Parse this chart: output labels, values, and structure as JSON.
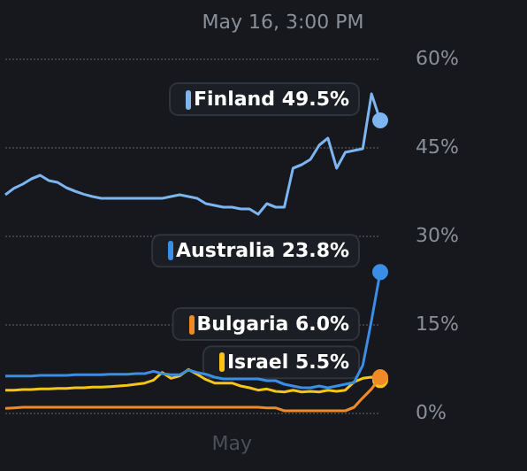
{
  "chart_data": {
    "type": "line",
    "title": "May 16, 3:00 PM",
    "categories": [
      null,
      null,
      null,
      null,
      null,
      null,
      null,
      null,
      null,
      null,
      null,
      null,
      null,
      null,
      null,
      null,
      null,
      null,
      null,
      null,
      null,
      null,
      null,
      null,
      null,
      null,
      "May",
      null,
      null,
      null,
      null,
      null,
      null,
      null,
      null,
      null,
      null,
      null,
      null,
      null,
      null,
      null,
      null,
      null
    ],
    "series": [
      {
        "name": "Finland",
        "color": "#7cb5f0",
        "values": [
          36.9,
          38,
          38.7,
          39.6,
          40.2,
          39.3,
          39,
          38.1,
          37.5,
          37,
          36.6,
          36.3,
          36.3,
          36.3,
          36.3,
          36.3,
          36.3,
          36.3,
          36.3,
          36.6,
          36.9,
          36.6,
          36.3,
          35.4,
          35.1,
          34.8,
          34.8,
          34.5,
          34.5,
          33.6,
          35.4,
          34.8,
          34.8,
          41.4,
          42,
          42.9,
          45.3,
          46.5,
          41.4,
          44.1,
          44.4,
          44.7,
          54,
          49.5
        ],
        "value_labels": [
          null,
          null,
          null,
          null,
          null,
          null,
          null,
          null,
          null,
          null,
          null,
          null,
          null,
          null,
          null,
          null,
          null,
          null,
          null,
          null,
          null,
          null,
          null,
          null,
          null,
          null,
          null,
          null,
          null,
          null,
          null,
          null,
          null,
          null,
          null,
          null,
          null,
          null,
          null,
          null,
          null,
          null,
          null,
          "49.5%"
        ]
      },
      {
        "name": "Australia",
        "color": "#3a8ee6",
        "values": [
          6.2,
          6.2,
          6.2,
          6.2,
          6.3,
          6.3,
          6.3,
          6.3,
          6.4,
          6.4,
          6.4,
          6.4,
          6.5,
          6.5,
          6.5,
          6.6,
          6.6,
          7,
          6.6,
          6.4,
          6.4,
          7.2,
          6.8,
          6.5,
          6,
          5.7,
          5.7,
          5.7,
          5.7,
          5.7,
          5.4,
          5.4,
          4.8,
          4.5,
          4.2,
          4.2,
          4.5,
          4.2,
          4.5,
          4.8,
          5.1,
          8,
          15.6,
          23.8
        ],
        "value_labels": [
          null,
          null,
          null,
          null,
          null,
          null,
          null,
          null,
          null,
          null,
          null,
          null,
          null,
          null,
          null,
          null,
          null,
          null,
          null,
          null,
          null,
          null,
          null,
          null,
          null,
          null,
          null,
          null,
          null,
          null,
          null,
          null,
          null,
          null,
          null,
          null,
          null,
          null,
          null,
          null,
          null,
          null,
          null,
          "23.8%"
        ]
      },
      {
        "name": "Bulgaria",
        "color": "#f08a24",
        "values": [
          0.7,
          0.8,
          0.9,
          0.9,
          0.9,
          0.9,
          0.9,
          0.9,
          0.9,
          0.9,
          0.9,
          0.9,
          0.9,
          0.9,
          0.9,
          0.9,
          0.9,
          0.9,
          0.9,
          0.9,
          0.9,
          0.9,
          0.9,
          0.9,
          0.9,
          0.9,
          0.9,
          0.9,
          0.9,
          0.9,
          0.8,
          0.8,
          0.3,
          0.3,
          0.3,
          0.3,
          0.3,
          0.3,
          0.3,
          0.3,
          0.9,
          2.5,
          4,
          6
        ],
        "value_labels": [
          null,
          null,
          null,
          null,
          null,
          null,
          null,
          null,
          null,
          null,
          null,
          null,
          null,
          null,
          null,
          null,
          null,
          null,
          null,
          null,
          null,
          null,
          null,
          null,
          null,
          null,
          null,
          null,
          null,
          null,
          null,
          null,
          null,
          null,
          null,
          null,
          null,
          null,
          null,
          null,
          null,
          null,
          null,
          "6.0%"
        ]
      },
      {
        "name": "Israel",
        "color": "#f5c518",
        "values": [
          3.8,
          3.8,
          3.9,
          3.9,
          4,
          4,
          4.1,
          4.1,
          4.2,
          4.2,
          4.3,
          4.3,
          4.4,
          4.5,
          4.6,
          4.8,
          5,
          5.5,
          6.8,
          5.8,
          6.2,
          7.3,
          6.5,
          5.6,
          5,
          5,
          5,
          4.5,
          4.2,
          3.8,
          4,
          3.6,
          3.5,
          3.8,
          3.5,
          3.6,
          3.5,
          3.8,
          3.6,
          3.8,
          5.2,
          5.8,
          6,
          5.5
        ],
        "value_labels": [
          null,
          null,
          null,
          null,
          null,
          null,
          null,
          null,
          null,
          null,
          null,
          null,
          null,
          null,
          null,
          null,
          null,
          null,
          null,
          null,
          null,
          null,
          null,
          null,
          null,
          null,
          null,
          null,
          null,
          null,
          null,
          null,
          null,
          null,
          null,
          null,
          null,
          null,
          null,
          null,
          null,
          null,
          null,
          "5.5%"
        ]
      }
    ],
    "ylim": [
      0,
      60
    ],
    "yticks": [
      {
        "value": 0,
        "label": "0%"
      },
      {
        "value": 15,
        "label": "15%"
      },
      {
        "value": 30,
        "label": "30%"
      },
      {
        "value": 45,
        "label": "45%"
      },
      {
        "value": 60,
        "label": "60%"
      }
    ],
    "grid": "y",
    "legend": false
  }
}
